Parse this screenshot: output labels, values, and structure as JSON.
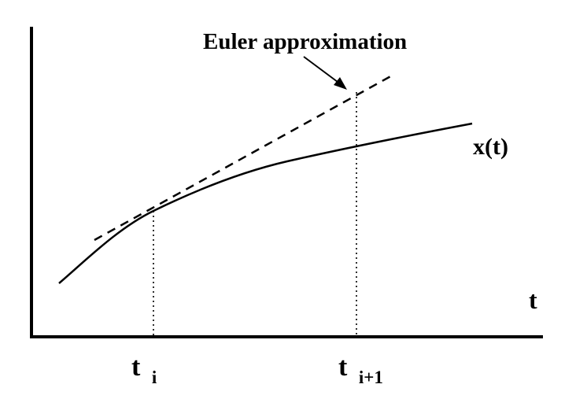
{
  "diagram": {
    "annotation": "Euler approximation",
    "curve_label": "x(t)",
    "axis_label": "t",
    "tick_i": {
      "base": "t",
      "sub": "i"
    },
    "tick_i1": {
      "base": "t",
      "sub": "i+1"
    }
  },
  "colors": {
    "ink": "#000000",
    "background": "#ffffff"
  }
}
